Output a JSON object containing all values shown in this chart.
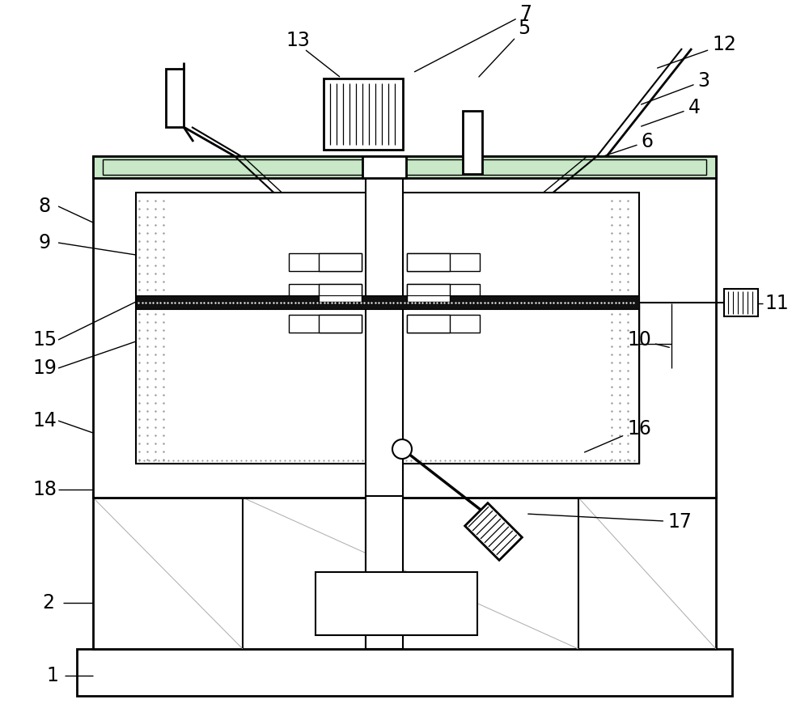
{
  "bg_color": "#ffffff",
  "fig_width": 10,
  "fig_height": 8.75,
  "dpi": 100,
  "lw_thick": 2.0,
  "lw_med": 1.5,
  "lw_thin": 1.0,
  "lw_vt": 0.7,
  "gray_fill": "#cccccc",
  "dark_fill": "#111111",
  "green_fill": "#c8e8c8"
}
